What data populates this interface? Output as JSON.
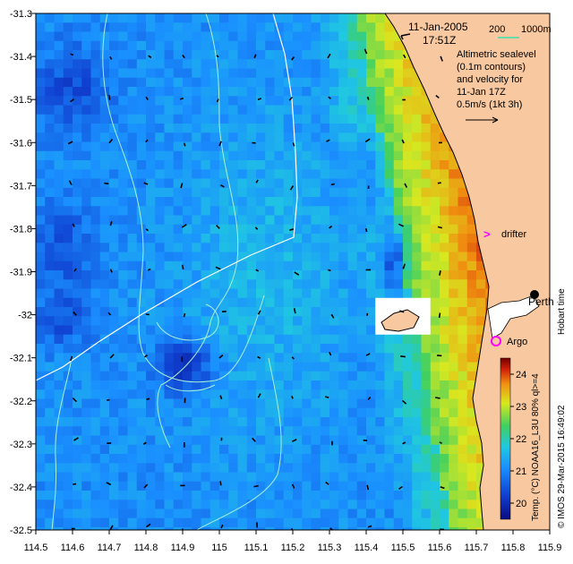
{
  "colors": {
    "land": "#f8c8a0",
    "contour": "#a8f0d8",
    "track": "#ffffff",
    "drifter": "#ff00ff",
    "argo": "#ff00ff",
    "scale_bar": "#40e0b0"
  },
  "header": {
    "date": "11-Jan-2005",
    "time": "17:51Z",
    "scale_200": "200",
    "scale_1000": "1000m"
  },
  "legend_text": {
    "line1": "Altimetric sealevel",
    "line2": "(0.1m contours)",
    "line3": "and velocity for",
    "line4": "11-Jan 17Z",
    "line5": "0.5m/s (1kt 3h)"
  },
  "labels": {
    "drifter": "drifter",
    "perth": "Perth",
    "argo": "Argo",
    "hobart": "Hobart time",
    "credit": "© IMOS 29-Mar-2015 16:49:02",
    "colorbar_title": "Temp. (°C) NOAA16_L3U 80% ql>=4"
  },
  "chart_data": {
    "type": "heatmap",
    "x_ticks": [
      "114.5",
      "114.6",
      "114.7",
      "114.8",
      "114.9",
      "115",
      "115.1",
      "115.2",
      "115.3",
      "115.4",
      "115.5",
      "115.6",
      "115.7",
      "115.8",
      "115.9"
    ],
    "y_ticks": [
      "-31.3",
      "-31.4",
      "-31.5",
      "-31.6",
      "-31.7",
      "-31.8",
      "-31.9",
      "-32",
      "-32.1",
      "-32.2",
      "-32.3",
      "-32.4",
      "-32.5"
    ],
    "xlim": [
      114.5,
      115.9
    ],
    "ylim": [
      -32.5,
      -31.3
    ],
    "colorbar": {
      "ticks": [
        "20",
        "21",
        "22",
        "23",
        "24"
      ],
      "range": [
        19.5,
        24.5
      ]
    }
  }
}
